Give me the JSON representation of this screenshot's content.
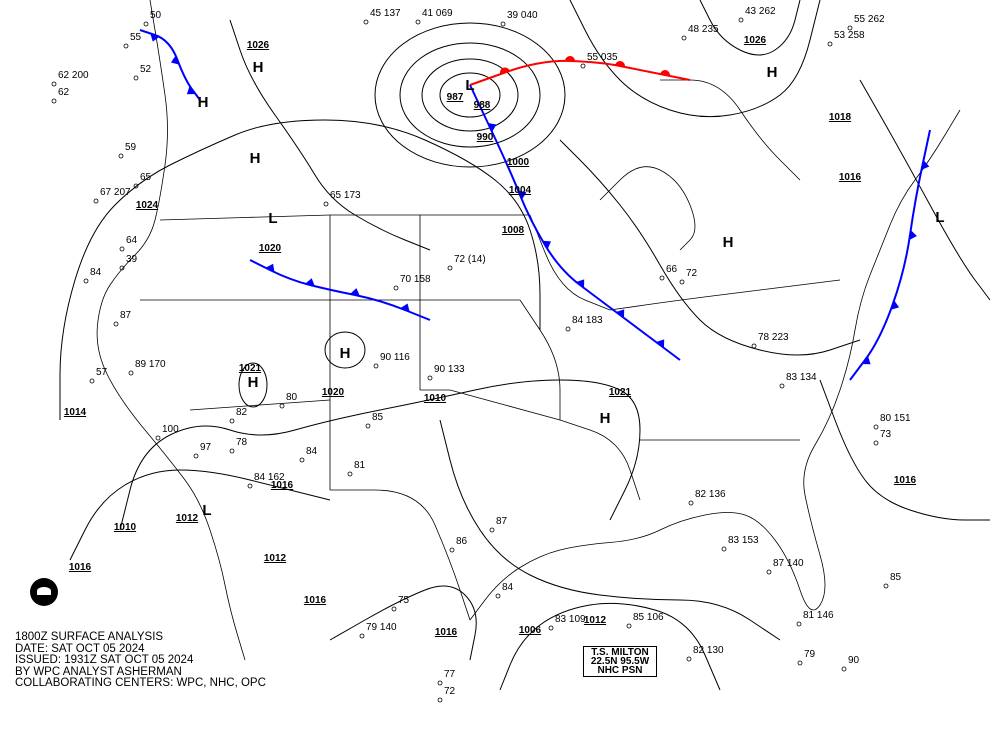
{
  "caption": {
    "line1": "1800Z SURFACE ANALYSIS",
    "line2": "DATE: SAT OCT 05 2024",
    "line3": "ISSUED: 1931Z SAT OCT 05 2024",
    "line4": "BY WPC ANALYST ASHERMAN",
    "line5": "COLLABORATING CENTERS: WPC, NHC, OPC"
  },
  "storm_box": {
    "line1": "T.S. MILTON",
    "line2": "22.5N 95.5W",
    "line3": "NHC PSN"
  },
  "colors": {
    "warm_front": "#ff0000",
    "cold_front": "#0000ff",
    "isobar": "#000000"
  },
  "pressure_labels": [
    "1026",
    "1024",
    "1020",
    "1021",
    "1014",
    "1010",
    "1016",
    "1012",
    "1012",
    "1016",
    "1016",
    "1006",
    "1012",
    "1016",
    "1026",
    "1021",
    "1010",
    "1020",
    "1004",
    "1008",
    "1000",
    "987",
    "988",
    "990",
    "1016",
    "1018",
    "1016",
    "1010"
  ],
  "highs": [
    "H",
    "H",
    "H",
    "H",
    "H",
    "H",
    "H",
    "H"
  ],
  "lows": [
    "L",
    "L",
    "L",
    "L"
  ],
  "stations": [
    "50",
    "55",
    "62 200",
    "62",
    "52",
    "59",
    "65",
    "67 207",
    "64",
    "39",
    "84",
    "87",
    "57",
    "89 170",
    "100",
    "82",
    "78",
    "97",
    "84 162",
    "84",
    "81",
    "85",
    "80",
    "90 116",
    "90 133",
    "72 (14)",
    "70 158",
    "65 173",
    "45 137",
    "41 069",
    "39 040",
    "55 035",
    "48 235",
    "43 262",
    "55 262",
    "53 258",
    "84 183",
    "72",
    "66",
    "78 223",
    "83 134",
    "80 151",
    "73",
    "82 136",
    "83 153",
    "87 140",
    "81 146",
    "85",
    "90",
    "79 140",
    "86",
    "87",
    "84",
    "83 109",
    "85 106",
    "82 130",
    "79",
    "75",
    "77",
    "72"
  ]
}
